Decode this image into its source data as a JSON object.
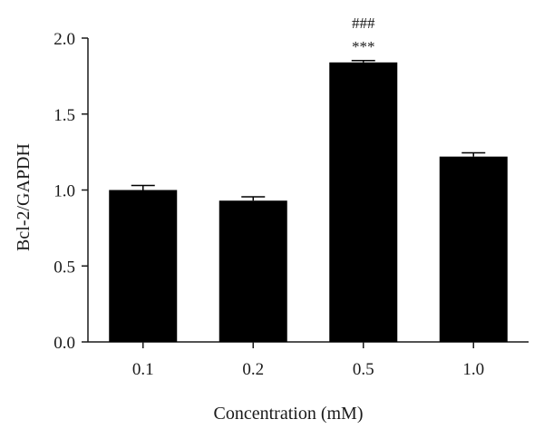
{
  "chart_data": {
    "type": "bar",
    "categories": [
      "0.1",
      "0.2",
      "0.5",
      "1.0"
    ],
    "values": [
      1.0,
      0.93,
      1.84,
      1.22
    ],
    "errors": [
      0.03,
      0.025,
      0.012,
      0.025
    ],
    "annotations": [
      {
        "category": "0.5",
        "lines": [
          "###",
          "***"
        ]
      }
    ],
    "xlabel": "Concentration (mM)",
    "ylabel": "Bcl-2/GAPDH",
    "ylim": [
      0,
      2.0
    ],
    "yticks": [
      "0.0",
      "0.5",
      "1.0",
      "1.5",
      "2.0"
    ],
    "grid": false,
    "bar_color": "#000000"
  }
}
